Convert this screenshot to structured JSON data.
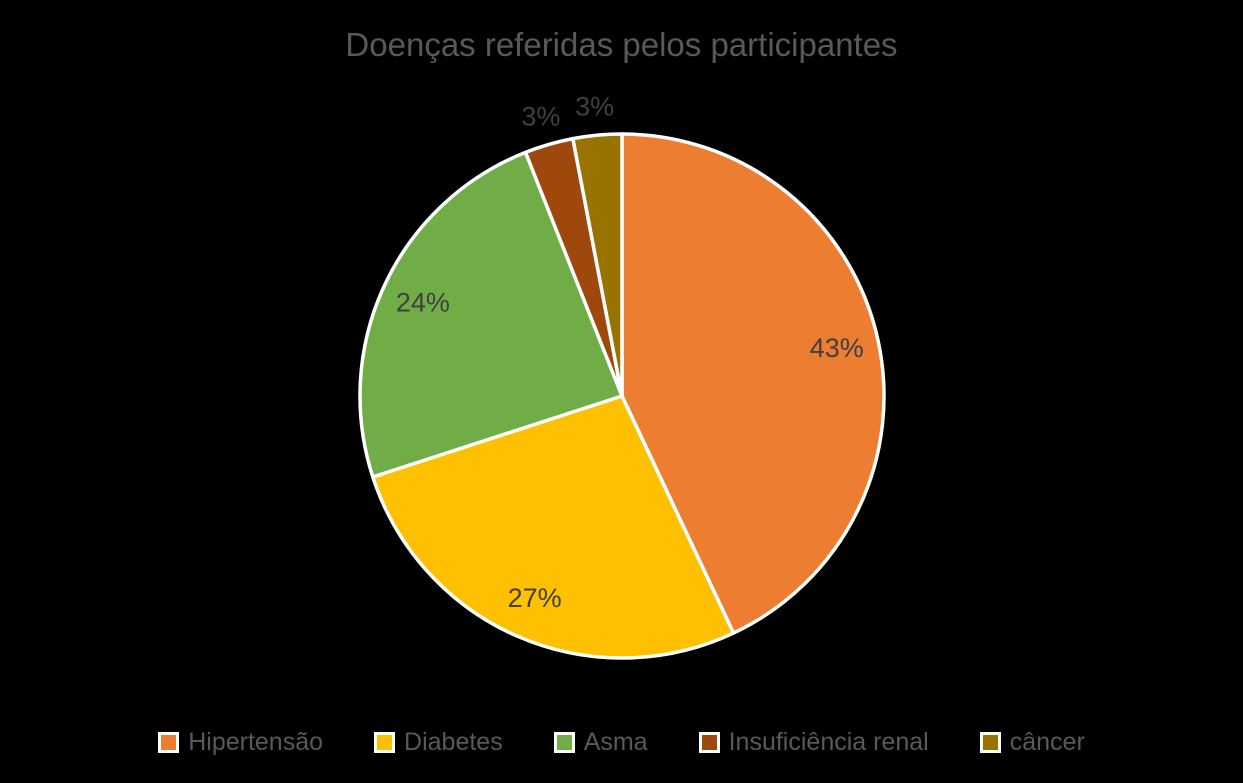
{
  "page": {
    "background_color": "#000000"
  },
  "chart_data": {
    "type": "pie",
    "title": "Doenças referidas pelos participantes",
    "categories": [
      "Hipertensão",
      "Diabetes",
      "Asma",
      "Insuficiência renal",
      "câncer"
    ],
    "values": [
      43,
      27,
      24,
      3,
      3
    ],
    "value_unit": "percent",
    "data_labels": [
      "43%",
      "27%",
      "24%",
      "3%",
      "3%"
    ],
    "slice_colors": [
      "#ED7D31",
      "#FFC000",
      "#70AD47",
      "#9E480E",
      "#997300"
    ],
    "start_angle_deg": 0,
    "direction": "clockwise",
    "legend_position": "bottom",
    "legend_entries": [
      "Hipertensão",
      "Diabetes",
      "Asma",
      "Insuficiência renal",
      "câncer"
    ],
    "styles": {
      "title_color": "#595959",
      "data_label_color": "#404040",
      "legend_text_color": "#595959",
      "slice_border_color": "#FFFFFF"
    }
  }
}
